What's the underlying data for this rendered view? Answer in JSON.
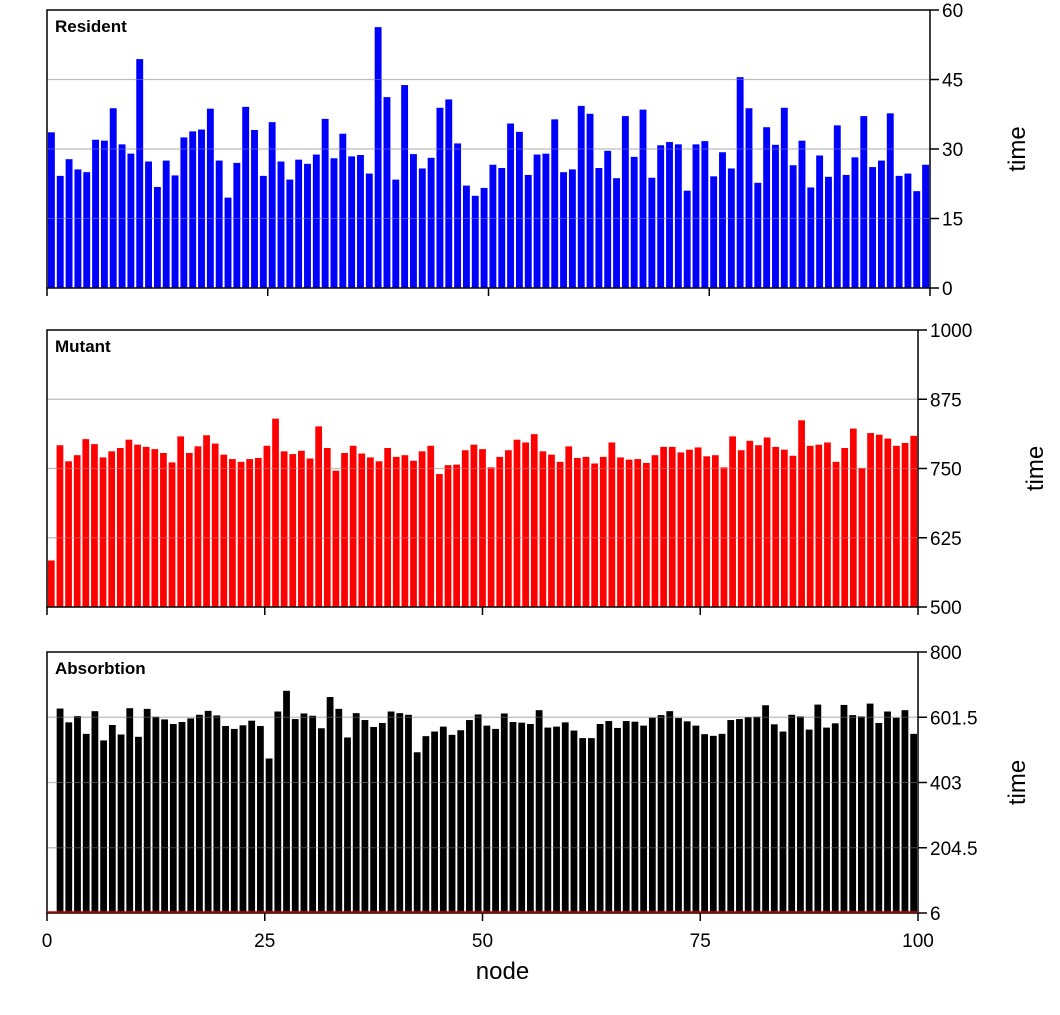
{
  "chart_data": [
    {
      "type": "bar",
      "title": "Resident",
      "ylabel": "time",
      "ylim": [
        0,
        60
      ],
      "yticks": [
        "0",
        "15",
        "30",
        "45",
        "60"
      ],
      "xlim": [
        0,
        100
      ],
      "grid": true,
      "color": "#0000ff",
      "values": [
        33.6,
        24.2,
        27.8,
        25.6,
        25.0,
        32.0,
        31.8,
        38.8,
        31.0,
        29.0,
        49.4,
        27.3,
        21.8,
        27.5,
        24.3,
        32.5,
        33.8,
        34.2,
        38.7,
        27.5,
        19.5,
        27.0,
        39.1,
        34.1,
        24.2,
        35.8,
        27.3,
        23.4,
        27.7,
        26.8,
        28.8,
        36.5,
        28.0,
        33.3,
        28.4,
        28.7,
        24.7,
        56.3,
        41.2,
        23.4,
        43.8,
        28.9,
        25.8,
        28.1,
        38.9,
        40.7,
        31.2,
        22.1,
        19.9,
        21.6,
        26.6,
        25.9,
        35.5,
        33.7,
        24.4,
        28.8,
        29.0,
        36.4,
        25.0,
        25.6,
        39.3,
        37.6,
        25.9,
        29.6,
        23.7,
        37.1,
        28.3,
        38.5,
        23.8,
        30.8,
        31.5,
        31.0,
        21.0,
        31.0,
        31.7,
        24.1,
        29.3,
        25.8,
        45.5,
        38.8,
        22.7,
        34.7,
        30.9,
        38.9,
        26.5,
        31.8,
        21.7,
        28.6,
        24.0,
        35.1,
        24.4,
        28.2,
        37.1,
        26.1,
        27.5,
        37.7,
        24.2,
        24.7,
        20.9,
        26.6
      ]
    },
    {
      "type": "bar",
      "title": "Mutant",
      "ylabel": "time",
      "ylim": [
        500,
        1000
      ],
      "yticks": [
        "500",
        "625",
        "750",
        "875",
        "1000"
      ],
      "xlim": [
        0,
        100
      ],
      "grid": true,
      "color": "#ff0000",
      "values": [
        584,
        792,
        763,
        774,
        803,
        794,
        770,
        781,
        787,
        802,
        793,
        789,
        785,
        778,
        761,
        808,
        778,
        790,
        810,
        795,
        775,
        767,
        762,
        767,
        769,
        791,
        840,
        781,
        776,
        782,
        768,
        826,
        787,
        746,
        778,
        791,
        777,
        770,
        763,
        787,
        771,
        774,
        764,
        781,
        791,
        740,
        756,
        757,
        783,
        793,
        785,
        752,
        771,
        783,
        802,
        797,
        812,
        781,
        775,
        762,
        790,
        769,
        771,
        759,
        771,
        797,
        770,
        766,
        767,
        760,
        774,
        789,
        789,
        779,
        784,
        788,
        772,
        774,
        752,
        808,
        783,
        800,
        792,
        806,
        789,
        784,
        773,
        837,
        791,
        793,
        797,
        762,
        787,
        822,
        751,
        814,
        811,
        804,
        791,
        796,
        809
      ]
    },
    {
      "type": "bar",
      "title": "Absorbtion",
      "ylabel": "time",
      "ylim": [
        6,
        800
      ],
      "yticks": [
        "6",
        "204.5",
        "403",
        "601.5",
        "800"
      ],
      "xlim": [
        0,
        100
      ],
      "xticks": [
        "0",
        "25",
        "50",
        "75",
        "100"
      ],
      "xlabel": "node",
      "grid": true,
      "color": "#000000",
      "values": [
        6,
        628,
        586,
        605,
        551,
        620,
        531,
        578,
        549,
        629,
        542,
        627,
        603,
        595,
        581,
        587,
        598,
        609,
        621,
        607,
        575,
        566,
        577,
        591,
        575,
        476,
        619,
        682,
        596,
        613,
        606,
        568,
        663,
        627,
        540,
        614,
        593,
        572,
        584,
        619,
        614,
        609,
        495,
        544,
        558,
        573,
        548,
        562,
        593,
        610,
        576,
        566,
        613,
        587,
        585,
        581,
        623,
        570,
        573,
        586,
        561,
        538,
        538,
        581,
        590,
        569,
        590,
        588,
        576,
        600,
        608,
        620,
        599,
        589,
        576,
        550,
        545,
        551,
        593,
        596,
        602,
        603,
        638,
        580,
        558,
        609,
        604,
        564,
        640,
        570,
        583,
        639,
        608,
        604,
        643,
        584,
        619,
        600,
        623,
        551
      ]
    }
  ]
}
